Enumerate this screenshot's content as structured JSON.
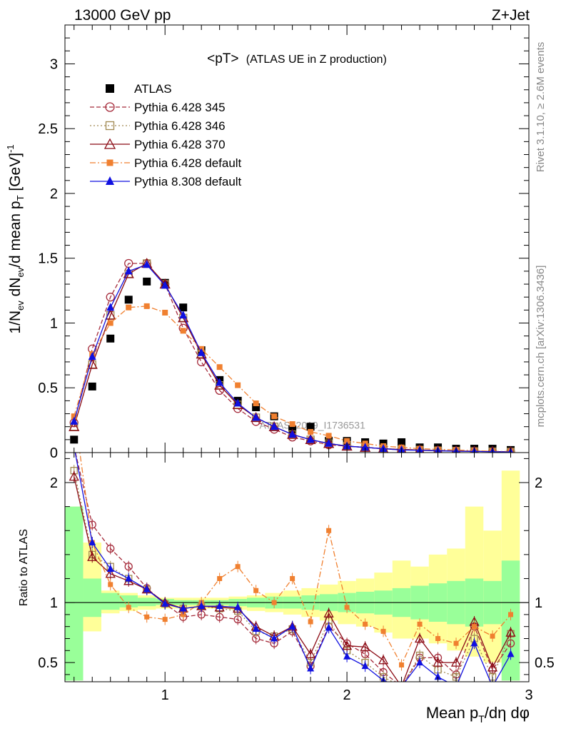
{
  "header": {
    "left": "13000 GeV pp",
    "right": "Z+Jet"
  },
  "side_labels": {
    "rivet": "Rivet 3.1.10, ≥ 2.6M events",
    "mcplots": "mcplots.cern.ch [arXiv:1306.3436]"
  },
  "colors": {
    "atlas": "#000000",
    "p345": "#a52a3a",
    "p346": "#a08850",
    "p370": "#8b0a14",
    "p6def": "#f08030",
    "p8def": "#1010e0",
    "band_yellow": "#ffff99",
    "band_green": "#99ff99"
  },
  "chart_data": [
    {
      "type": "line",
      "title": "<pT>",
      "subtitle": "(ATLAS UE in Z production)",
      "xlabel": "Mean pT/dη dφ",
      "ylabel": "1/Nev dNev/d mean pT [GeV]^-1",
      "xlim": [
        0.45,
        3.0
      ],
      "ylim": [
        0,
        3.3
      ],
      "log_scale": false,
      "watermark": "ATLAS_2019_I1736531",
      "x": [
        0.5,
        0.6,
        0.7,
        0.8,
        0.9,
        1.0,
        1.1,
        1.2,
        1.3,
        1.4,
        1.5,
        1.6,
        1.7,
        1.8,
        1.9,
        2.0,
        2.1,
        2.2,
        2.3,
        2.4,
        2.5,
        2.6,
        2.7,
        2.8,
        2.9
      ],
      "x_ticks": [
        "1",
        "2",
        "3"
      ],
      "y_ticks": [
        "0",
        "0.5",
        "1",
        "1.5",
        "2",
        "2.5",
        "3"
      ],
      "series": [
        {
          "name": "ATLAS",
          "style": "data-square",
          "color_key": "atlas",
          "values": [
            0.1,
            0.51,
            0.88,
            1.18,
            1.32,
            1.31,
            1.12,
            0.79,
            0.56,
            0.4,
            0.35,
            0.28,
            0.18,
            0.2,
            0.09,
            0.09,
            0.08,
            0.07,
            0.08,
            0.04,
            0.04,
            0.03,
            0.03,
            0.03,
            0.02
          ]
        },
        {
          "name": "Pythia 6.428 345",
          "style": "open-circle-dashed",
          "color_key": "p345",
          "values": [
            0.23,
            0.8,
            1.2,
            1.46,
            1.46,
            1.3,
            0.96,
            0.7,
            0.48,
            0.34,
            0.24,
            0.18,
            0.12,
            0.09,
            0.06,
            0.05,
            0.04,
            0.03,
            0.02,
            0.02,
            0.015,
            0.012,
            0.01,
            0.008,
            0.006
          ]
        },
        {
          "name": "Pythia 6.428 346",
          "style": "open-square-dotted",
          "color_key": "p346",
          "values": [
            0.2,
            0.68,
            1.06,
            1.38,
            1.46,
            1.3,
            1.04,
            0.76,
            0.52,
            0.37,
            0.27,
            0.2,
            0.14,
            0.1,
            0.07,
            0.05,
            0.04,
            0.03,
            0.025,
            0.02,
            0.015,
            0.012,
            0.01,
            0.008,
            0.006
          ]
        },
        {
          "name": "Pythia 6.428 370",
          "style": "open-triangle-solid",
          "color_key": "p370",
          "values": [
            0.2,
            0.68,
            1.06,
            1.38,
            1.46,
            1.3,
            1.04,
            0.76,
            0.52,
            0.37,
            0.27,
            0.2,
            0.14,
            0.1,
            0.07,
            0.05,
            0.04,
            0.03,
            0.025,
            0.02,
            0.015,
            0.012,
            0.01,
            0.008,
            0.006
          ]
        },
        {
          "name": "Pythia 6.428 default",
          "style": "filled-square-dashdot",
          "color_key": "p6def",
          "values": [
            0.28,
            0.76,
            1.0,
            1.12,
            1.13,
            1.08,
            0.94,
            0.8,
            0.66,
            0.52,
            0.38,
            0.28,
            0.22,
            0.16,
            0.13,
            0.09,
            0.07,
            0.05,
            0.04,
            0.03,
            0.025,
            0.02,
            0.015,
            0.01,
            0.008
          ]
        },
        {
          "name": "Pythia 8.308 default",
          "style": "filled-triangle-solid",
          "color_key": "p8def",
          "values": [
            0.24,
            0.74,
            1.12,
            1.4,
            1.45,
            1.29,
            1.06,
            0.77,
            0.54,
            0.38,
            0.27,
            0.2,
            0.14,
            0.1,
            0.07,
            0.05,
            0.04,
            0.03,
            0.02,
            0.018,
            0.014,
            0.011,
            0.009,
            0.007,
            0.005
          ]
        }
      ]
    },
    {
      "type": "line",
      "ylabel": "Ratio to ATLAS",
      "xlim": [
        0.45,
        3.0
      ],
      "ylim": [
        0.34,
        2.25
      ],
      "y_ticks": [
        "0.5",
        "1",
        "2"
      ],
      "x": [
        0.5,
        0.6,
        0.7,
        0.8,
        0.9,
        1.0,
        1.1,
        1.2,
        1.3,
        1.4,
        1.5,
        1.6,
        1.7,
        1.8,
        1.9,
        2.0,
        2.1,
        2.2,
        2.3,
        2.4,
        2.5,
        2.6,
        2.7,
        2.8,
        2.9
      ],
      "bands": {
        "yellow_hi": [
          1.8,
          1.5,
          1.1,
          1.08,
          1.06,
          1.04,
          1.04,
          1.04,
          1.04,
          1.05,
          1.06,
          1.08,
          1.1,
          1.12,
          1.15,
          1.18,
          1.2,
          1.25,
          1.35,
          1.3,
          1.4,
          1.45,
          1.8,
          1.6,
          2.1
        ],
        "yellow_lo": [
          0.35,
          0.76,
          0.91,
          0.93,
          0.94,
          0.95,
          0.95,
          0.95,
          0.95,
          0.94,
          0.93,
          0.92,
          0.9,
          0.88,
          0.85,
          0.82,
          0.8,
          0.75,
          0.7,
          0.7,
          0.66,
          0.6,
          0.55,
          0.5,
          0.35
        ],
        "green_hi": [
          1.8,
          1.2,
          1.08,
          1.06,
          1.04,
          1.03,
          1.02,
          1.02,
          1.02,
          1.03,
          1.04,
          1.05,
          1.05,
          1.06,
          1.07,
          1.08,
          1.09,
          1.1,
          1.12,
          1.14,
          1.16,
          1.18,
          1.2,
          1.18,
          1.35
        ],
        "green_lo": [
          0.35,
          0.88,
          0.94,
          0.96,
          0.97,
          0.98,
          0.98,
          0.98,
          0.98,
          0.97,
          0.96,
          0.95,
          0.95,
          0.94,
          0.93,
          0.92,
          0.91,
          0.9,
          0.88,
          0.86,
          0.84,
          0.82,
          0.8,
          0.82,
          0.35
        ]
      },
      "series": [
        {
          "name": "Pythia 6.428 345",
          "color_key": "p345",
          "style": "open-circle-dashed",
          "values": [
            2.3,
            1.65,
            1.45,
            1.3,
            1.12,
            0.99,
            0.88,
            0.9,
            0.88,
            0.86,
            0.7,
            0.66,
            0.76,
            0.47,
            0.8,
            0.66,
            0.57,
            0.42,
            0.3,
            0.54,
            0.54,
            0.4,
            0.8,
            0.44,
            0.66
          ]
        },
        {
          "name": "Pythia 6.428 346",
          "color_key": "p346",
          "style": "open-square-dotted",
          "values": [
            2.1,
            1.4,
            1.3,
            1.2,
            1.11,
            0.99,
            0.95,
            0.97,
            0.95,
            0.93,
            0.76,
            0.72,
            0.78,
            0.5,
            0.85,
            0.6,
            0.5,
            0.38,
            0.3,
            0.56,
            0.44,
            0.38,
            0.7,
            0.38,
            0.74
          ]
        },
        {
          "name": "Pythia 6.428 370",
          "color_key": "p370",
          "style": "open-triangle-solid",
          "values": [
            2.05,
            1.38,
            1.24,
            1.18,
            1.11,
            1.0,
            0.95,
            0.97,
            0.96,
            0.95,
            0.8,
            0.72,
            0.8,
            0.57,
            0.91,
            0.64,
            0.63,
            0.52,
            0.3,
            0.7,
            0.5,
            0.5,
            0.84,
            0.46,
            0.75
          ]
        },
        {
          "name": "Pythia 6.428 default",
          "color_key": "p6def",
          "style": "filled-square-dashdot",
          "values": [
            2.6,
            1.5,
            1.15,
            0.96,
            0.88,
            0.86,
            0.9,
            1.0,
            1.2,
            1.3,
            1.1,
            1.0,
            1.2,
            0.84,
            1.6,
            0.96,
            0.82,
            0.76,
            0.48,
            0.82,
            0.7,
            0.66,
            0.8,
            0.72,
            0.9
          ]
        },
        {
          "name": "Pythia 8.308 default",
          "color_key": "p8def",
          "style": "filled-triangle-solid",
          "values": [
            2.3,
            1.5,
            1.28,
            1.2,
            1.11,
            0.99,
            0.95,
            0.97,
            0.97,
            0.96,
            0.78,
            0.7,
            0.8,
            0.45,
            0.79,
            0.55,
            0.47,
            0.35,
            0.3,
            0.5,
            0.38,
            0.3,
            0.66,
            0.3,
            0.57
          ]
        }
      ]
    }
  ]
}
